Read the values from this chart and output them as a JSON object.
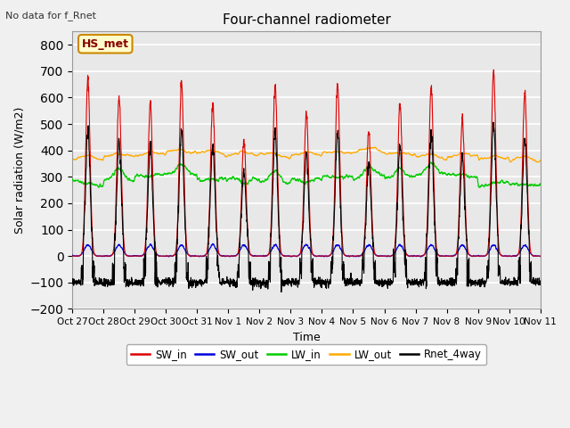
{
  "title": "Four-channel radiometer",
  "subtitle": "No data for f_Rnet",
  "ylabel": "Solar radiation (W/m2)",
  "xlabel": "Time",
  "station_label": "HS_met",
  "ylim": [
    -200,
    850
  ],
  "yticks": [
    -200,
    -100,
    0,
    100,
    200,
    300,
    400,
    500,
    600,
    700,
    800
  ],
  "xtick_labels": [
    "Oct 27",
    "Oct 28",
    "Oct 29",
    "Oct 30",
    "Oct 31",
    "Nov 1",
    "Nov 2",
    "Nov 3",
    "Nov 4",
    "Nov 5",
    "Nov 6",
    "Nov 7",
    "Nov 8",
    "Nov 9",
    "Nov 10",
    "Nov 11"
  ],
  "colors": {
    "SW_in": "#dd0000",
    "SW_out": "#0000dd",
    "LW_in": "#00cc00",
    "LW_out": "#ffaa00",
    "Rnet_4way": "#000000"
  },
  "fig_bg": "#f0f0f0",
  "plot_bg": "#e8e8e8",
  "grid_color": "#ffffff",
  "num_days": 15
}
